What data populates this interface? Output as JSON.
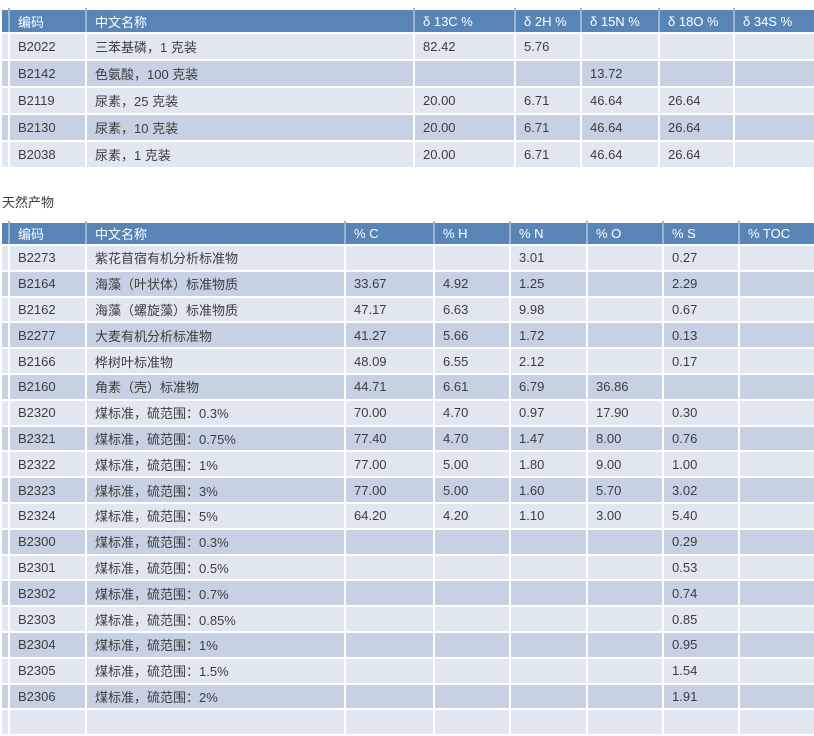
{
  "section_title": "天然产物",
  "colors": {
    "header_bg": "#5885B6",
    "header_separator": "#9AB5D3",
    "row_light": "#E1E7F0",
    "row_dark": "#C6D1E3",
    "header_text": "#FFFFFF",
    "body_text": "#3D3D3D"
  },
  "isotope_table": {
    "columns": [
      "编码",
      "中文名称",
      "δ 13C %",
      "δ 2H %",
      "δ 15N %",
      "δ 18O %",
      "δ 34S %"
    ],
    "rows": [
      [
        "B2022",
        "三苯基磷，1 克装",
        "82.42",
        "5.76",
        "",
        "",
        ""
      ],
      [
        "B2142",
        "色氨酸，100 克装",
        "",
        "",
        "13.72",
        "",
        ""
      ],
      [
        "B2119",
        "尿素，25 克装",
        "20.00",
        "6.71",
        "46.64",
        "26.64",
        ""
      ],
      [
        "B2130",
        "尿素，10 克装",
        "20.00",
        "6.71",
        "46.64",
        "26.64",
        ""
      ],
      [
        "B2038",
        "尿素，1 克装",
        "20.00",
        "6.71",
        "46.64",
        "26.64",
        ""
      ]
    ]
  },
  "natural_products_table": {
    "columns": [
      "编码",
      "中文名称",
      "% C",
      "% H",
      "% N",
      "% O",
      "% S",
      "% TOC"
    ],
    "rows": [
      [
        "B2273",
        "紫花苜宿有机分析标准物",
        "",
        "",
        "3.01",
        "",
        "0.27",
        ""
      ],
      [
        "B2164",
        "海藻（叶状体）标准物质",
        "33.67",
        "4.92",
        "1.25",
        "",
        "2.29",
        ""
      ],
      [
        "B2162",
        "海藻（螺旋藻）标准物质",
        "47.17",
        "6.63",
        "9.98",
        "",
        "0.67",
        ""
      ],
      [
        "B2277",
        "大麦有机分析标准物",
        "41.27",
        "5.66",
        "1.72",
        "",
        "0.13",
        ""
      ],
      [
        "B2166",
        "桦树叶标准物",
        "48.09",
        "6.55",
        "2.12",
        "",
        "0.17",
        ""
      ],
      [
        "B2160",
        "角素（壳）标准物",
        "44.71",
        "6.61",
        "6.79",
        "36.86",
        "",
        ""
      ],
      [
        "B2320",
        "煤标准，硫范围：0.3%",
        "70.00",
        "4.70",
        "0.97",
        "17.90",
        "0.30",
        ""
      ],
      [
        "B2321",
        "煤标准，硫范围：0.75%",
        "77.40",
        "4.70",
        "1.47",
        "8.00",
        "0.76",
        ""
      ],
      [
        "B2322",
        "煤标准，硫范围：1%",
        "77.00",
        "5.00",
        "1.80",
        "9.00",
        "1.00",
        ""
      ],
      [
        "B2323",
        "煤标准，硫范围：3%",
        "77.00",
        "5.00",
        "1.60",
        "5.70",
        "3.02",
        ""
      ],
      [
        "B2324",
        "煤标准，硫范围：5%",
        "64.20",
        "4.20",
        "1.10",
        "3.00",
        "5.40",
        ""
      ],
      [
        "B2300",
        "煤标准，硫范围：0.3%",
        "",
        "",
        "",
        "",
        "0.29",
        ""
      ],
      [
        "B2301",
        "煤标准，硫范围：0.5%",
        "",
        "",
        "",
        "",
        "0.53",
        ""
      ],
      [
        "B2302",
        "煤标准，硫范围：0.7%",
        "",
        "",
        "",
        "",
        "0.74",
        ""
      ],
      [
        "B2303",
        "煤标准，硫范围：0.85%",
        "",
        "",
        "",
        "",
        "0.85",
        ""
      ],
      [
        "B2304",
        "煤标准，硫范围：1%",
        "",
        "",
        "",
        "",
        "0.95",
        ""
      ],
      [
        "B2305",
        "煤标准，硫范围：1.5%",
        "",
        "",
        "",
        "",
        "1.54",
        ""
      ],
      [
        "B2306",
        "煤标准，硫范围：2%",
        "",
        "",
        "",
        "",
        "1.91",
        ""
      ],
      [
        "",
        "",
        "",
        "",
        "",
        "",
        "",
        ""
      ]
    ]
  }
}
